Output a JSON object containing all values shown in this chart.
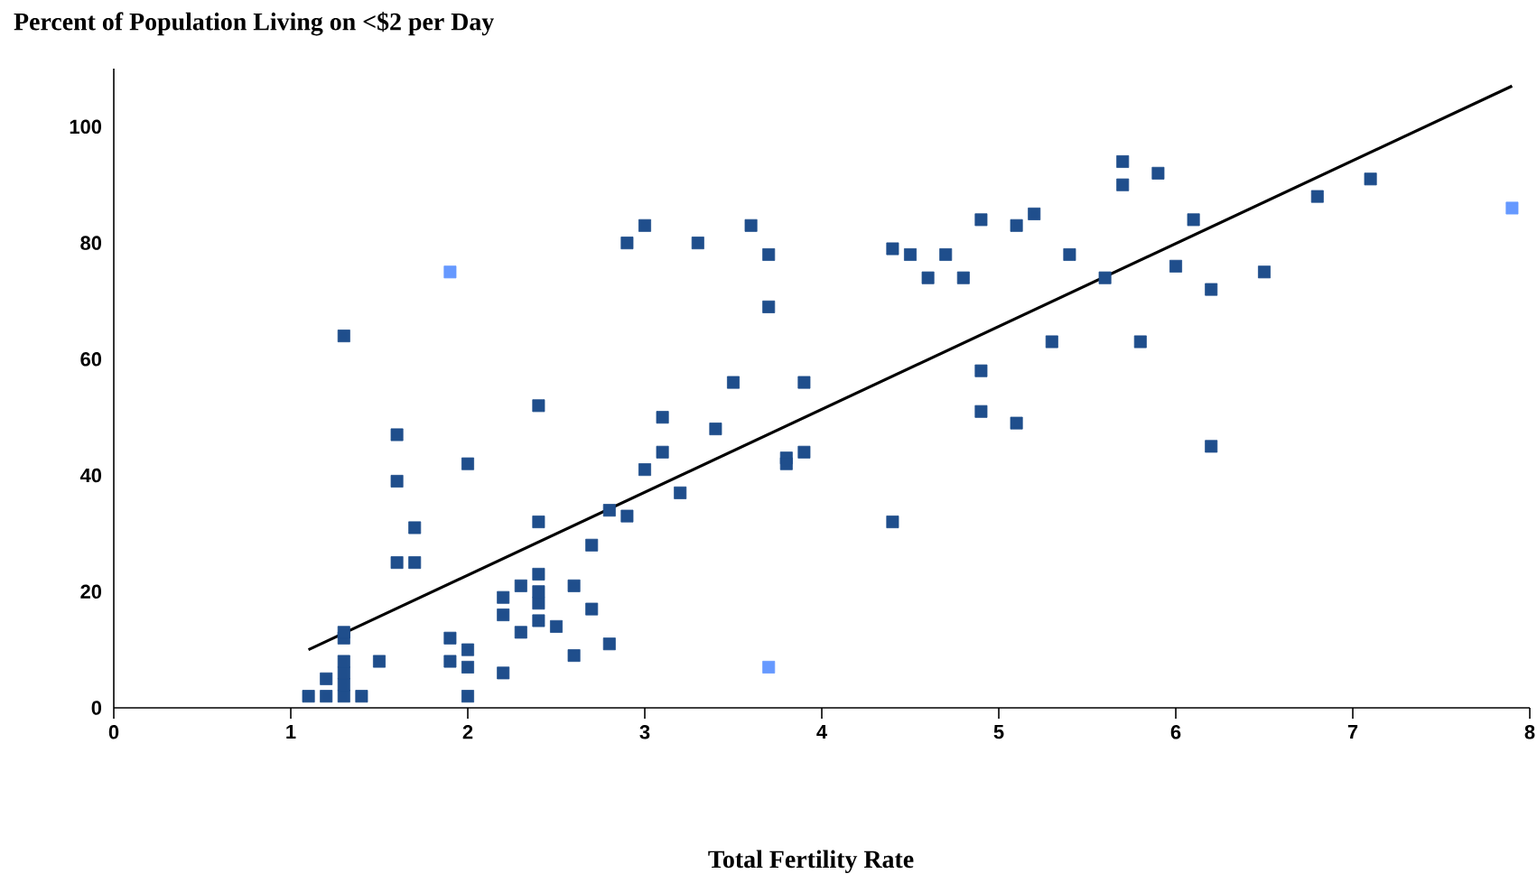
{
  "chart_data": {
    "type": "scatter",
    "title": "Percent of Population Living on <$2 per Day",
    "xlabel": "Total Fertility Rate",
    "xlim": [
      0,
      8
    ],
    "xticks": [
      0,
      1,
      2,
      3,
      4,
      5,
      6,
      7,
      8
    ],
    "ylim": [
      0,
      110
    ],
    "yticks": [
      0,
      20,
      40,
      60,
      80,
      100
    ],
    "grid": false,
    "series": [
      {
        "marker": "square",
        "color": "#1f4e8c",
        "x": [
          1.1,
          1.2,
          1.2,
          1.3,
          1.3,
          1.3,
          1.3,
          1.3,
          1.3,
          1.4,
          1.5,
          1.3,
          1.6,
          1.6,
          1.6,
          1.7,
          1.7,
          1.9,
          1.9,
          2.0,
          2.0,
          2.0,
          2.0,
          2.2,
          2.2,
          2.2,
          2.3,
          2.3,
          2.4,
          2.4,
          2.4,
          2.4,
          2.4,
          2.4,
          2.5,
          2.6,
          2.6,
          2.7,
          2.7,
          2.8,
          2.8,
          2.9,
          2.9,
          3.0,
          3.0,
          3.1,
          3.1,
          3.2,
          3.3,
          3.4,
          3.5,
          3.6,
          3.7,
          3.7,
          3.8,
          3.8,
          3.9,
          3.9,
          4.4,
          4.4,
          4.5,
          4.6,
          4.7,
          4.8,
          4.9,
          4.9,
          4.9,
          5.1,
          5.1,
          5.2,
          5.3,
          5.4,
          5.6,
          5.7,
          5.7,
          5.8,
          5.9,
          6.0,
          6.1,
          6.2,
          6.2,
          6.5,
          6.8,
          7.1
        ],
        "values": [
          2,
          2,
          5,
          2,
          4,
          6,
          8,
          12,
          13,
          2,
          8,
          64,
          47,
          39,
          25,
          31,
          25,
          12,
          8,
          10,
          7,
          2,
          42,
          19,
          16,
          6,
          21,
          13,
          52,
          32,
          23,
          20,
          18,
          15,
          14,
          21,
          9,
          28,
          17,
          34,
          11,
          33,
          80,
          83,
          41,
          50,
          44,
          37,
          80,
          48,
          56,
          83,
          78,
          69,
          43,
          42,
          56,
          44,
          32,
          79,
          78,
          74,
          78,
          74,
          84,
          58,
          51,
          83,
          49,
          85,
          63,
          78,
          74,
          94,
          90,
          63,
          92,
          76,
          84,
          72,
          45,
          75,
          88,
          91
        ]
      },
      {
        "marker": "square",
        "color": "#6699ff",
        "x": [
          1.9,
          3.7,
          7.9
        ],
        "values": [
          75,
          7,
          86
        ]
      },
      {
        "type": "line",
        "color": "#000000",
        "x": [
          1.1,
          7.9
        ],
        "values": [
          10,
          107
        ]
      }
    ]
  }
}
